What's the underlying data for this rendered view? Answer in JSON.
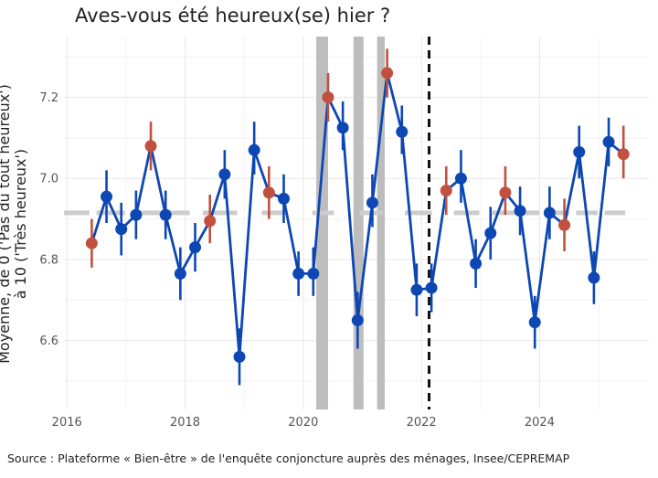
{
  "chart_data": {
    "type": "line",
    "title": "Aves-vous été heureux(se) hier ?",
    "ylabel_line1": "Moyenne, de 0 ('Pas du tout heureux')",
    "ylabel_line2": "à 10 ('Très heureux')",
    "source": "Source : Plateforme « Bien-être » de l'enquête conjoncture auprès des ménages, Insee/CEPREMAP",
    "xlim": [
      2015.95,
      2025.85
    ],
    "ylim": [
      6.43,
      7.35
    ],
    "x_ticks": [
      2016,
      2018,
      2020,
      2022,
      2024
    ],
    "x_tick_labels": [
      "2016",
      "2018",
      "2020",
      "2022",
      "2024"
    ],
    "y_ticks": [
      6.6,
      6.8,
      7.0,
      7.2
    ],
    "y_tick_labels": [
      "6.6",
      "6.8",
      "7.0",
      "7.2"
    ],
    "grid": true,
    "reference_mean": 6.915,
    "reference_dash_x_segments": [
      [
        2015.95,
        2016.38
      ],
      [
        2016.5,
        2016.98
      ],
      [
        2017.1,
        2017.58
      ],
      [
        2017.7,
        2018.08
      ],
      [
        2018.3,
        2018.88
      ],
      [
        2019.3,
        2019.72
      ],
      [
        2020.15,
        2020.52
      ],
      [
        2020.95,
        2021.35
      ],
      [
        2021.72,
        2022.18
      ],
      [
        2022.55,
        2022.98
      ],
      [
        2023.2,
        2023.62
      ],
      [
        2023.75,
        2024.0
      ],
      [
        2024.2,
        2024.5
      ],
      [
        2024.62,
        2024.98
      ],
      [
        2025.1,
        2025.45
      ]
    ],
    "shaded_periods": [
      [
        2020.22,
        2020.42
      ],
      [
        2020.85,
        2021.02
      ],
      [
        2021.25,
        2021.38
      ]
    ],
    "vertical_line_x": 2022.13,
    "colors": {
      "line": "#0d47b3",
      "highlight": "#c1503f",
      "shade": "#bdbdbd",
      "reference": "#cccccc",
      "vline": "#111111",
      "grid": "#ebebeb",
      "axis_text": "#555555"
    },
    "points": [
      {
        "x": 2016.42,
        "y": 6.84,
        "lo": 6.78,
        "hi": 6.9,
        "highlight": true
      },
      {
        "x": 2016.67,
        "y": 6.955,
        "lo": 6.89,
        "hi": 7.02,
        "highlight": false
      },
      {
        "x": 2016.92,
        "y": 6.875,
        "lo": 6.81,
        "hi": 6.94,
        "highlight": false
      },
      {
        "x": 2017.17,
        "y": 6.91,
        "lo": 6.85,
        "hi": 6.97,
        "highlight": false
      },
      {
        "x": 2017.42,
        "y": 7.08,
        "lo": 7.02,
        "hi": 7.14,
        "highlight": true
      },
      {
        "x": 2017.67,
        "y": 6.91,
        "lo": 6.85,
        "hi": 6.97,
        "highlight": false
      },
      {
        "x": 2017.92,
        "y": 6.765,
        "lo": 6.7,
        "hi": 6.83,
        "highlight": false
      },
      {
        "x": 2018.17,
        "y": 6.83,
        "lo": 6.77,
        "hi": 6.89,
        "highlight": false
      },
      {
        "x": 2018.42,
        "y": 6.895,
        "lo": 6.84,
        "hi": 6.96,
        "highlight": true
      },
      {
        "x": 2018.67,
        "y": 7.01,
        "lo": 6.95,
        "hi": 7.07,
        "highlight": false
      },
      {
        "x": 2018.92,
        "y": 6.56,
        "lo": 6.49,
        "hi": 6.63,
        "highlight": false
      },
      {
        "x": 2019.17,
        "y": 7.07,
        "lo": 7.01,
        "hi": 7.14,
        "highlight": false
      },
      {
        "x": 2019.42,
        "y": 6.965,
        "lo": 6.9,
        "hi": 7.03,
        "highlight": true
      },
      {
        "x": 2019.67,
        "y": 6.95,
        "lo": 6.89,
        "hi": 7.01,
        "highlight": false
      },
      {
        "x": 2019.92,
        "y": 6.765,
        "lo": 6.71,
        "hi": 6.82,
        "highlight": false
      },
      {
        "x": 2020.17,
        "y": 6.765,
        "lo": 6.71,
        "hi": 6.83,
        "highlight": false
      },
      {
        "x": 2020.42,
        "y": 7.2,
        "lo": 7.14,
        "hi": 7.26,
        "highlight": true
      },
      {
        "x": 2020.67,
        "y": 7.125,
        "lo": 7.07,
        "hi": 7.19,
        "highlight": false
      },
      {
        "x": 2020.92,
        "y": 6.65,
        "lo": 6.58,
        "hi": 6.72,
        "highlight": false
      },
      {
        "x": 2021.17,
        "y": 6.94,
        "lo": 6.88,
        "hi": 7.01,
        "highlight": false
      },
      {
        "x": 2021.42,
        "y": 7.26,
        "lo": 7.2,
        "hi": 7.32,
        "highlight": true
      },
      {
        "x": 2021.67,
        "y": 7.115,
        "lo": 7.06,
        "hi": 7.18,
        "highlight": false
      },
      {
        "x": 2021.92,
        "y": 6.725,
        "lo": 6.66,
        "hi": 6.79,
        "highlight": false
      },
      {
        "x": 2022.17,
        "y": 6.73,
        "lo": 6.67,
        "hi": 6.79,
        "highlight": false
      },
      {
        "x": 2022.42,
        "y": 6.97,
        "lo": 6.91,
        "hi": 7.03,
        "highlight": true
      },
      {
        "x": 2022.67,
        "y": 7.0,
        "lo": 6.94,
        "hi": 7.07,
        "highlight": false
      },
      {
        "x": 2022.92,
        "y": 6.79,
        "lo": 6.73,
        "hi": 6.85,
        "highlight": false
      },
      {
        "x": 2023.17,
        "y": 6.865,
        "lo": 6.8,
        "hi": 6.93,
        "highlight": false
      },
      {
        "x": 2023.42,
        "y": 6.965,
        "lo": 6.91,
        "hi": 7.03,
        "highlight": true
      },
      {
        "x": 2023.67,
        "y": 6.92,
        "lo": 6.86,
        "hi": 6.98,
        "highlight": false
      },
      {
        "x": 2023.92,
        "y": 6.645,
        "lo": 6.58,
        "hi": 6.71,
        "highlight": false
      },
      {
        "x": 2024.17,
        "y": 6.915,
        "lo": 6.85,
        "hi": 6.98,
        "highlight": false
      },
      {
        "x": 2024.42,
        "y": 6.885,
        "lo": 6.82,
        "hi": 6.95,
        "highlight": true
      },
      {
        "x": 2024.67,
        "y": 7.065,
        "lo": 7.0,
        "hi": 7.13,
        "highlight": false
      },
      {
        "x": 2024.92,
        "y": 6.755,
        "lo": 6.69,
        "hi": 6.82,
        "highlight": false
      },
      {
        "x": 2025.17,
        "y": 7.09,
        "lo": 7.03,
        "hi": 7.15,
        "highlight": false
      },
      {
        "x": 2025.42,
        "y": 7.06,
        "lo": 7.0,
        "hi": 7.13,
        "highlight": true
      }
    ]
  }
}
